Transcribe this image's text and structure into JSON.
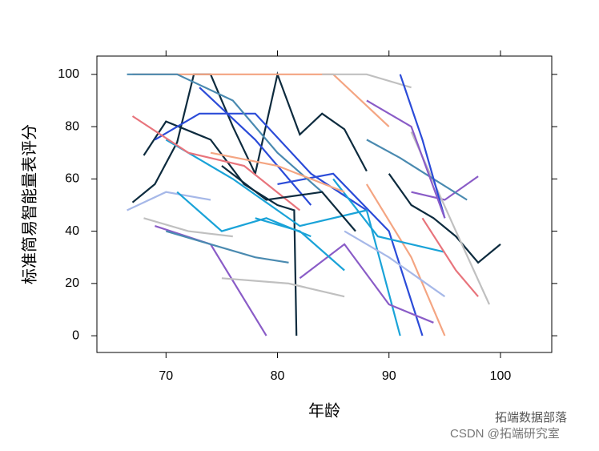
{
  "chart_data": {
    "type": "line",
    "xlabel": "年龄",
    "ylabel": "标准简易智能量表评分",
    "xlim": [
      63.8,
      104.6
    ],
    "ylim": [
      -6.4,
      107
    ],
    "xticks": [
      70,
      80,
      90,
      100
    ],
    "yticks": [
      0,
      20,
      40,
      60,
      80,
      100
    ],
    "grid": false,
    "annotations": [
      "拓端数据部落",
      "CSDN @拓端研究室"
    ],
    "series": [
      {
        "color": "#0d2b3e",
        "x": [
          67,
          69,
          71,
          72.5,
          74,
          76,
          78,
          80,
          82,
          84,
          86,
          88
        ],
        "values": [
          51,
          58,
          74,
          100,
          100,
          80,
          62,
          100,
          77,
          85,
          79,
          63
        ]
      },
      {
        "color": "#0d2b3e",
        "x": [
          68,
          70,
          74,
          77,
          80,
          81.5,
          81.7
        ],
        "values": [
          69,
          82,
          75,
          58,
          50,
          48,
          0
        ]
      },
      {
        "color": "#0d2b3e",
        "x": [
          90,
          92,
          94,
          96,
          98,
          100
        ],
        "values": [
          62,
          50,
          45,
          38,
          28,
          35
        ]
      },
      {
        "color": "#2b4bd8",
        "x": [
          69,
          73,
          78,
          83,
          88
        ],
        "values": [
          75,
          85,
          85,
          62,
          48
        ]
      },
      {
        "color": "#2b4bd8",
        "x": [
          80,
          85,
          90,
          93
        ],
        "values": [
          58,
          62,
          40,
          0
        ]
      },
      {
        "color": "#f4a582",
        "x": [
          67,
          72,
          78,
          85,
          90
        ],
        "values": [
          100,
          100,
          100,
          100,
          80
        ]
      },
      {
        "color": "#f4a582",
        "x": [
          88,
          92,
          95
        ],
        "values": [
          58,
          30,
          0
        ]
      },
      {
        "color": "#8a5cc7",
        "x": [
          69,
          74,
          79
        ],
        "values": [
          42,
          35,
          0
        ]
      },
      {
        "color": "#8a5cc7",
        "x": [
          92,
          95,
          98
        ],
        "values": [
          55,
          52,
          61
        ]
      },
      {
        "color": "#c0c0c0",
        "x": [
          92,
          96,
          99
        ],
        "values": [
          78,
          40,
          12
        ]
      },
      {
        "color": "#c0c0c0",
        "x": [
          75,
          81,
          86
        ],
        "values": [
          22,
          20,
          15
        ]
      },
      {
        "color": "#1aa3d8",
        "x": [
          70,
          76,
          82,
          88,
          91
        ],
        "values": [
          75,
          60,
          42,
          48,
          0
        ]
      },
      {
        "color": "#1aa3d8",
        "x": [
          85,
          89,
          95
        ],
        "values": [
          60,
          38,
          32
        ]
      },
      {
        "color": "#e8747c",
        "x": [
          67,
          72,
          77,
          82
        ],
        "values": [
          84,
          70,
          65,
          48
        ]
      },
      {
        "color": "#e8747c",
        "x": [
          93,
          96,
          98
        ],
        "values": [
          45,
          25,
          15
        ]
      },
      {
        "color": "#4a8ab0",
        "x": [
          66.5,
          71,
          76,
          80,
          84
        ],
        "values": [
          100,
          100,
          90,
          70,
          55
        ]
      },
      {
        "color": "#4a8ab0",
        "x": [
          88,
          91,
          94,
          97
        ],
        "values": [
          75,
          68,
          60,
          52
        ]
      },
      {
        "color": "#a6b8e8",
        "x": [
          66.5,
          70,
          74
        ],
        "values": [
          48,
          55,
          52
        ]
      },
      {
        "color": "#a6b8e8",
        "x": [
          86,
          90,
          95
        ],
        "values": [
          40,
          30,
          15
        ]
      },
      {
        "color": "#2b4bd8",
        "x": [
          73,
          78,
          83
        ],
        "values": [
          95,
          75,
          50
        ]
      },
      {
        "color": "#8a5cc7",
        "x": [
          82,
          86,
          90,
          94
        ],
        "values": [
          22,
          35,
          12,
          5
        ]
      },
      {
        "color": "#c0c0c0",
        "x": [
          84,
          88,
          92
        ],
        "values": [
          100,
          100,
          95
        ]
      },
      {
        "color": "#1aa3d8",
        "x": [
          78,
          82,
          86
        ],
        "values": [
          45,
          40,
          25
        ]
      },
      {
        "color": "#4a8ab0",
        "x": [
          70,
          74,
          78,
          81
        ],
        "values": [
          40,
          35,
          30,
          28
        ]
      },
      {
        "color": "#f4a582",
        "x": [
          74,
          80,
          86
        ],
        "values": [
          70,
          65,
          55
        ]
      },
      {
        "color": "#2b4bd8",
        "x": [
          91,
          93,
          95
        ],
        "values": [
          100,
          75,
          45
        ]
      },
      {
        "color": "#1aa3d8",
        "x": [
          71,
          75,
          79,
          83
        ],
        "values": [
          55,
          40,
          45,
          38
        ]
      },
      {
        "color": "#8a5cc7",
        "x": [
          88,
          92,
          95
        ],
        "values": [
          90,
          80,
          45
        ]
      },
      {
        "color": "#c0c0c0",
        "x": [
          68,
          72,
          76
        ],
        "values": [
          45,
          40,
          38
        ]
      },
      {
        "color": "#0d2b3e",
        "x": [
          75,
          79,
          84,
          87
        ],
        "values": [
          65,
          52,
          55,
          40
        ]
      }
    ]
  }
}
